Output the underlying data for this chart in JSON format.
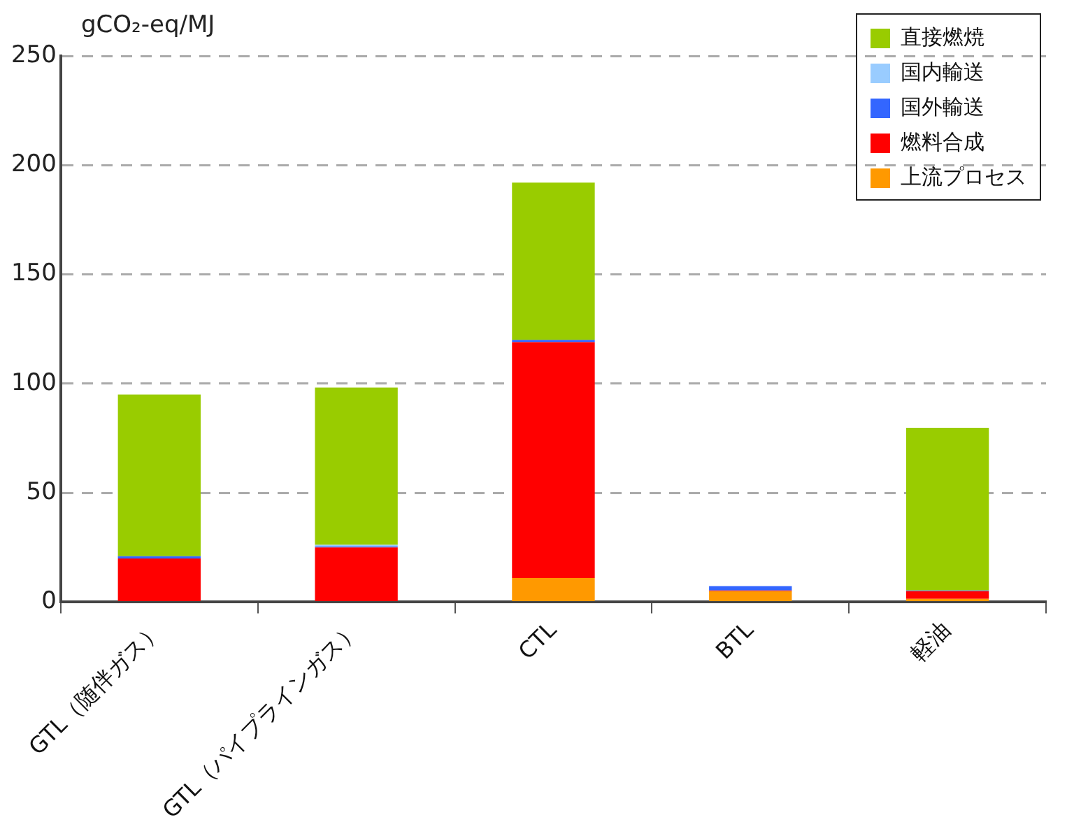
{
  "chart_data": {
    "type": "bar",
    "stacked": true,
    "ylabel": "gCO₂-eq/MJ",
    "categories": [
      "GTL（随伴ガス）",
      "GTL（パイプラインガス）",
      "CTL",
      "BTL",
      "軽油"
    ],
    "series": [
      {
        "name": "上流プロセス",
        "color": "#ff9900",
        "values": [
          0,
          0,
          11,
          5,
          1.5
        ]
      },
      {
        "name": "燃料合成",
        "color": "#ff0000",
        "values": [
          20,
          25,
          108,
          0.3,
          3.5
        ]
      },
      {
        "name": "国外輸送",
        "color": "#3366ff",
        "values": [
          1,
          0.5,
          1,
          2,
          0.3
        ]
      },
      {
        "name": "国内輸送",
        "color": "#99ccff",
        "values": [
          0,
          0.7,
          0,
          0,
          0
        ]
      },
      {
        "name": "直接燃焼",
        "color": "#99cc00",
        "values": [
          74,
          72,
          72,
          0,
          74.5
        ]
      }
    ],
    "ylim": [
      0,
      250
    ],
    "yticks": [
      0,
      50,
      100,
      150,
      200,
      250
    ],
    "grid": "y",
    "legend": "top right"
  }
}
